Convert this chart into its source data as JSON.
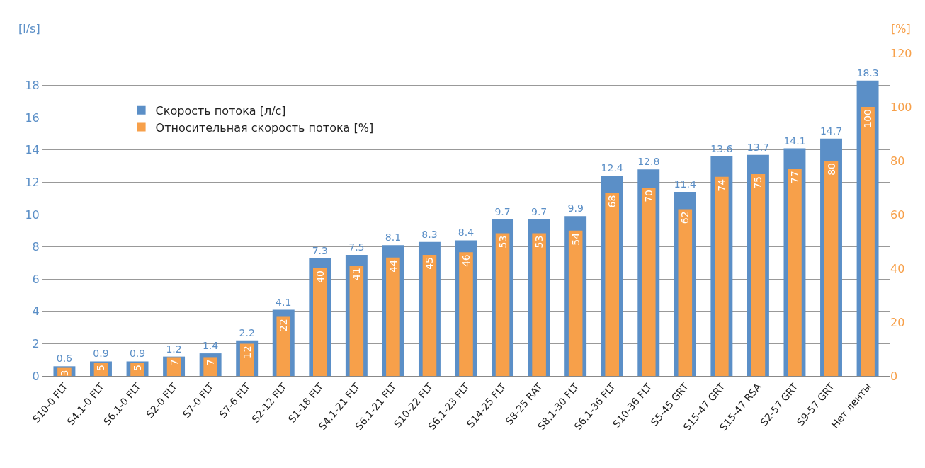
{
  "chart_data": {
    "type": "bar",
    "ylabel": "[l/s]",
    "y2label": "[%]",
    "categories": [
      "S10-0 FLT",
      "S4.1-0 FLT",
      "S6.1-0 FLT",
      "S2-0 FLT",
      "S7-0 FLT",
      "S7-6 FLT",
      "S2-12 FLT",
      "S1-18 FLT",
      "S4.1-21 FLT",
      "S6.1-21 FLT",
      "S10-22 FLT",
      "S6.1-23 FLT",
      "S14-25 FLT",
      "S8-25 RAT",
      "S8.1-30 FLT",
      "S6.1-36 FLT",
      "S10-36 FLT",
      "S5-45 GRT",
      "S15-47 GRT",
      "S15-47 RSA",
      "S2-57 GRT",
      "S9-57 GRT",
      "Нет ленты"
    ],
    "series": [
      {
        "name": "Скорость потока [л/с]",
        "color": "#5b8fc7",
        "values": [
          0.6,
          0.9,
          0.9,
          1.2,
          1.4,
          2.2,
          4.1,
          7.3,
          7.5,
          8.1,
          8.3,
          8.4,
          9.7,
          9.7,
          9.9,
          12.4,
          12.8,
          11.4,
          13.6,
          13.7,
          14.1,
          14.7,
          18.3
        ]
      },
      {
        "name": "Относительная скорость потока [%]",
        "color": "#f7a04a",
        "axis": "y2",
        "values": [
          3,
          5,
          5,
          7,
          7,
          12,
          22,
          40,
          41,
          44,
          45,
          46,
          53,
          53,
          54,
          68,
          70,
          62,
          74,
          75,
          77,
          80,
          100
        ]
      }
    ],
    "ylim": [
      0,
      20
    ],
    "yticks": [
      0,
      2,
      4,
      6,
      8,
      10,
      12,
      14,
      16,
      18
    ],
    "y2lim": [
      0,
      120
    ],
    "y2ticks": [
      0,
      20,
      40,
      60,
      80,
      100,
      120
    ],
    "grid": "y",
    "legend": "top left",
    "data_labels": true
  }
}
